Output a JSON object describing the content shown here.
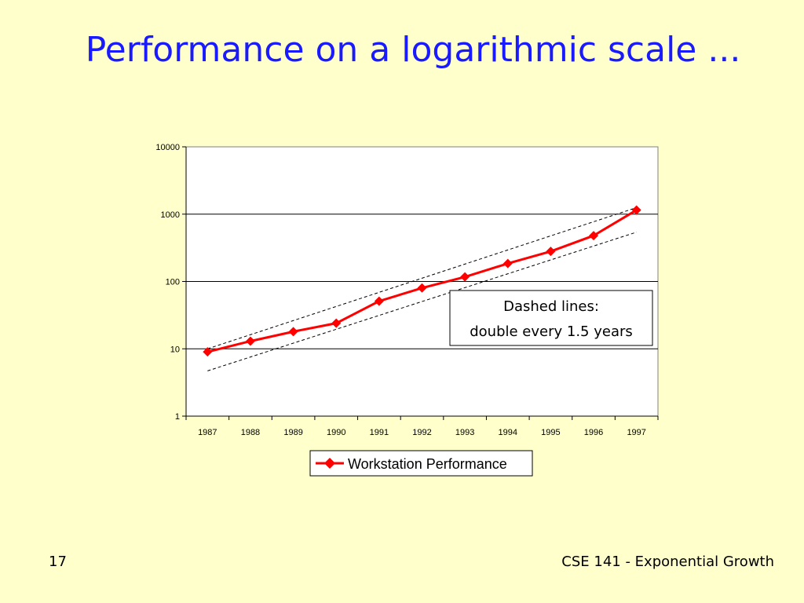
{
  "slide": {
    "title": "Performance on a logarithmic scale ...",
    "page_number": "17",
    "course_footer": "CSE 141 - Exponential Growth"
  },
  "colors": {
    "background": "#ffffcc",
    "title": "#1a1aff",
    "series": "#ff0000",
    "plot_area": "#ffffff",
    "gridline": "#000000",
    "dashed_line": "#000000"
  },
  "chart_data": {
    "type": "line",
    "title": "",
    "xlabel": "",
    "ylabel": "",
    "y_scale": "log",
    "ylim": [
      1,
      10000
    ],
    "y_ticks": [
      "1",
      "10",
      "100",
      "1000",
      "10000"
    ],
    "categories": [
      "1987",
      "1988",
      "1989",
      "1990",
      "1991",
      "1992",
      "1993",
      "1994",
      "1995",
      "1996",
      "1997"
    ],
    "series": [
      {
        "name": "Workstation Performance",
        "marker": "diamond",
        "values": [
          9,
          13,
          18,
          24,
          51,
          80,
          117,
          185,
          280,
          480,
          1150
        ]
      }
    ],
    "reference_lines": [
      {
        "style": "dashed",
        "x_from": "1987",
        "x_to": "1997",
        "y_from": 10,
        "y_to": 1250
      },
      {
        "style": "dashed",
        "x_from": "1987",
        "x_to": "1997",
        "y_from": 4.7,
        "y_to": 540
      }
    ],
    "annotation": {
      "lines": [
        "Dashed lines:",
        "double every 1.5 years"
      ],
      "position": "right"
    },
    "legend": {
      "position": "bottom",
      "entries": [
        "Workstation Performance"
      ]
    },
    "grid": {
      "horizontal": true,
      "vertical": false
    }
  }
}
